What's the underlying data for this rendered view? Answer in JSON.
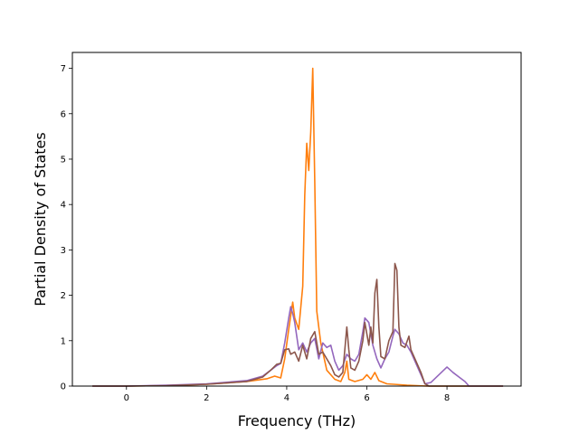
{
  "chart_data": {
    "type": "line",
    "title": "",
    "xlabel": "Frequency (THz)",
    "ylabel": "Partial Density of States",
    "xlim": [
      -1.35,
      9.85
    ],
    "ylim": [
      0,
      7.35
    ],
    "xticks": [
      0,
      2,
      4,
      6,
      8
    ],
    "yticks": [
      0,
      1,
      2,
      3,
      4,
      5,
      6,
      7
    ],
    "grid": false,
    "legend": "none",
    "series": [
      {
        "color": "#ff7f0e",
        "points": [
          [
            -0.85,
            0
          ],
          [
            0,
            0
          ],
          [
            1,
            0.01
          ],
          [
            2,
            0.04
          ],
          [
            3,
            0.1
          ],
          [
            3.5,
            0.16
          ],
          [
            3.7,
            0.22
          ],
          [
            3.85,
            0.18
          ],
          [
            3.95,
            0.6
          ],
          [
            4.05,
            1.25
          ],
          [
            4.15,
            1.85
          ],
          [
            4.2,
            1.5
          ],
          [
            4.3,
            1.25
          ],
          [
            4.4,
            2.2
          ],
          [
            4.45,
            4.2
          ],
          [
            4.5,
            5.35
          ],
          [
            4.55,
            4.75
          ],
          [
            4.6,
            5.6
          ],
          [
            4.65,
            7.0
          ],
          [
            4.7,
            4.5
          ],
          [
            4.75,
            1.65
          ],
          [
            4.85,
            0.95
          ],
          [
            5.0,
            0.35
          ],
          [
            5.2,
            0.15
          ],
          [
            5.35,
            0.1
          ],
          [
            5.45,
            0.3
          ],
          [
            5.5,
            0.55
          ],
          [
            5.55,
            0.15
          ],
          [
            5.7,
            0.1
          ],
          [
            5.9,
            0.15
          ],
          [
            6.0,
            0.25
          ],
          [
            6.1,
            0.15
          ],
          [
            6.2,
            0.3
          ],
          [
            6.3,
            0.12
          ],
          [
            6.5,
            0.05
          ],
          [
            7.0,
            0.02
          ],
          [
            7.5,
            0
          ],
          [
            9.4,
            0
          ]
        ]
      },
      {
        "color": "#9467bd",
        "points": [
          [
            -0.85,
            0
          ],
          [
            0,
            0
          ],
          [
            1,
            0.02
          ],
          [
            2,
            0.05
          ],
          [
            3,
            0.12
          ],
          [
            3.4,
            0.22
          ],
          [
            3.6,
            0.35
          ],
          [
            3.75,
            0.45
          ],
          [
            3.85,
            0.5
          ],
          [
            3.95,
            0.95
          ],
          [
            4.05,
            1.5
          ],
          [
            4.1,
            1.75
          ],
          [
            4.15,
            1.6
          ],
          [
            4.2,
            1.4
          ],
          [
            4.3,
            0.8
          ],
          [
            4.4,
            0.95
          ],
          [
            4.5,
            0.75
          ],
          [
            4.6,
            0.95
          ],
          [
            4.7,
            1.05
          ],
          [
            4.8,
            0.6
          ],
          [
            4.9,
            0.95
          ],
          [
            5.0,
            0.85
          ],
          [
            5.1,
            0.9
          ],
          [
            5.2,
            0.55
          ],
          [
            5.3,
            0.35
          ],
          [
            5.4,
            0.45
          ],
          [
            5.5,
            0.7
          ],
          [
            5.6,
            0.6
          ],
          [
            5.7,
            0.55
          ],
          [
            5.8,
            0.7
          ],
          [
            5.9,
            1.2
          ],
          [
            5.95,
            1.5
          ],
          [
            6.05,
            1.4
          ],
          [
            6.15,
            0.9
          ],
          [
            6.25,
            0.6
          ],
          [
            6.35,
            0.4
          ],
          [
            6.45,
            0.6
          ],
          [
            6.55,
            0.75
          ],
          [
            6.65,
            1.1
          ],
          [
            6.7,
            1.25
          ],
          [
            6.8,
            1.15
          ],
          [
            6.9,
            0.95
          ],
          [
            7.0,
            0.9
          ],
          [
            7.1,
            0.75
          ],
          [
            7.3,
            0.35
          ],
          [
            7.45,
            0.05
          ],
          [
            7.6,
            0.08
          ],
          [
            7.8,
            0.25
          ],
          [
            8.0,
            0.42
          ],
          [
            8.15,
            0.3
          ],
          [
            8.3,
            0.2
          ],
          [
            8.45,
            0.1
          ],
          [
            8.55,
            0
          ],
          [
            9.4,
            0
          ]
        ]
      },
      {
        "color": "#8c564b",
        "points": [
          [
            -0.85,
            0
          ],
          [
            0,
            0
          ],
          [
            1,
            0.01
          ],
          [
            2,
            0.04
          ],
          [
            3,
            0.1
          ],
          [
            3.4,
            0.2
          ],
          [
            3.6,
            0.35
          ],
          [
            3.75,
            0.48
          ],
          [
            3.85,
            0.5
          ],
          [
            3.95,
            0.8
          ],
          [
            4.05,
            0.82
          ],
          [
            4.1,
            0.7
          ],
          [
            4.2,
            0.75
          ],
          [
            4.3,
            0.55
          ],
          [
            4.4,
            0.9
          ],
          [
            4.5,
            0.6
          ],
          [
            4.6,
            1.05
          ],
          [
            4.7,
            1.2
          ],
          [
            4.8,
            0.7
          ],
          [
            4.9,
            0.75
          ],
          [
            5.0,
            0.6
          ],
          [
            5.1,
            0.45
          ],
          [
            5.2,
            0.25
          ],
          [
            5.3,
            0.2
          ],
          [
            5.4,
            0.3
          ],
          [
            5.5,
            1.3
          ],
          [
            5.55,
            0.8
          ],
          [
            5.6,
            0.4
          ],
          [
            5.7,
            0.35
          ],
          [
            5.8,
            0.55
          ],
          [
            5.9,
            1.0
          ],
          [
            5.95,
            1.4
          ],
          [
            6.05,
            0.9
          ],
          [
            6.1,
            1.3
          ],
          [
            6.15,
            0.95
          ],
          [
            6.2,
            2.05
          ],
          [
            6.25,
            2.35
          ],
          [
            6.3,
            1.3
          ],
          [
            6.35,
            0.65
          ],
          [
            6.45,
            0.6
          ],
          [
            6.55,
            1.0
          ],
          [
            6.65,
            1.2
          ],
          [
            6.7,
            2.7
          ],
          [
            6.75,
            2.55
          ],
          [
            6.8,
            1.3
          ],
          [
            6.85,
            0.9
          ],
          [
            6.95,
            0.85
          ],
          [
            7.05,
            1.1
          ],
          [
            7.1,
            0.8
          ],
          [
            7.2,
            0.6
          ],
          [
            7.35,
            0.3
          ],
          [
            7.45,
            0.05
          ],
          [
            7.55,
            0
          ],
          [
            9.4,
            0
          ]
        ]
      }
    ]
  }
}
